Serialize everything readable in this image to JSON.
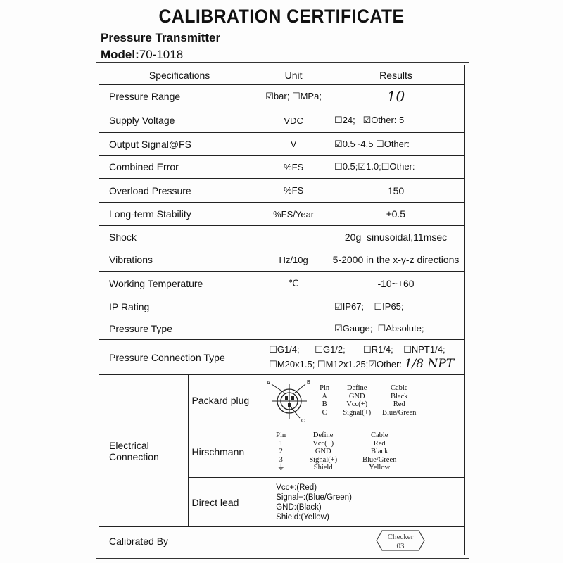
{
  "title": "CALIBRATION CERTIFICATE",
  "subtitle": "Pressure Transmitter",
  "model_label": "Model:",
  "model_value": "70-1018",
  "headers": [
    "Specifications",
    "Unit",
    "Results"
  ],
  "rows": [
    {
      "spec": "Pressure Range",
      "unit": "☑bar; ☐MPa;",
      "result": "10"
    },
    {
      "spec": "Supply Voltage",
      "unit": "VDC",
      "result": "☐24;   ☑Other: 5"
    },
    {
      "spec": "Output Signal@FS",
      "unit": "V",
      "result": "☑0.5~4.5 ☐Other:"
    },
    {
      "spec": "Combined Error",
      "unit": "%FS",
      "result": "☐0.5;☑1.0;☐Other:"
    },
    {
      "spec": "Overload Pressure",
      "unit": "%FS",
      "result": "150"
    },
    {
      "spec": "Long-term Stability",
      "unit": "%FS/Year",
      "result": "±0.5"
    },
    {
      "spec": "Shock",
      "unit": "",
      "result": "20g  sinusoidal,11msec"
    },
    {
      "spec": "Vibrations",
      "unit": "Hz/10g",
      "result": "5-2000 in the x-y-z directions"
    },
    {
      "spec": "Working Temperature",
      "unit": "℃",
      "result": "-10~+60"
    },
    {
      "spec": "IP Rating",
      "unit": "",
      "result": "☑IP67;    ☐IP65;"
    },
    {
      "spec": "Pressure Type",
      "unit": "",
      "result": "☑Gauge;  ☐Absolute;"
    }
  ],
  "connection": {
    "spec": "Pressure Connection Type",
    "line1": "☐G1/4;      ☐G1/2;       ☐R1/4;    ☐NPT1/4;",
    "line2": "☐M20x1.5; ☐M12x1.25;☑Other:",
    "handwritten": "1/8 NPT"
  },
  "electrical": {
    "label": "Electrical Connection",
    "packard": {
      "label": "Packard plug",
      "pin_labels": [
        "A",
        "B",
        "C"
      ],
      "columns": [
        "Pin",
        "Define",
        "Cable"
      ],
      "rows": [
        [
          "A",
          "GND",
          "Black"
        ],
        [
          "B",
          "Vcc(+)",
          "Red"
        ],
        [
          "C",
          "Signal(+)",
          "Blue/Green"
        ]
      ]
    },
    "hirschmann": {
      "label": "Hirschmann",
      "columns": [
        "Pin",
        "Define",
        "Cable"
      ],
      "rows": [
        [
          "1",
          "Vcc(+)",
          "Red"
        ],
        [
          "2",
          "GND",
          "Black"
        ],
        [
          "3",
          "Signal(+)",
          "Blue/Green"
        ],
        [
          "⏚",
          "Shield",
          "Yellow"
        ]
      ]
    },
    "direct": {
      "label": "Direct lead",
      "lines": [
        "Vcc+:(Red)",
        "Signal+:(Blue/Green)",
        "GND:(Black)",
        "Shield:(Yellow)"
      ]
    }
  },
  "calibrated_by": "Calibrated By",
  "stamp": {
    "line1": "Checker",
    "line2": "03"
  }
}
